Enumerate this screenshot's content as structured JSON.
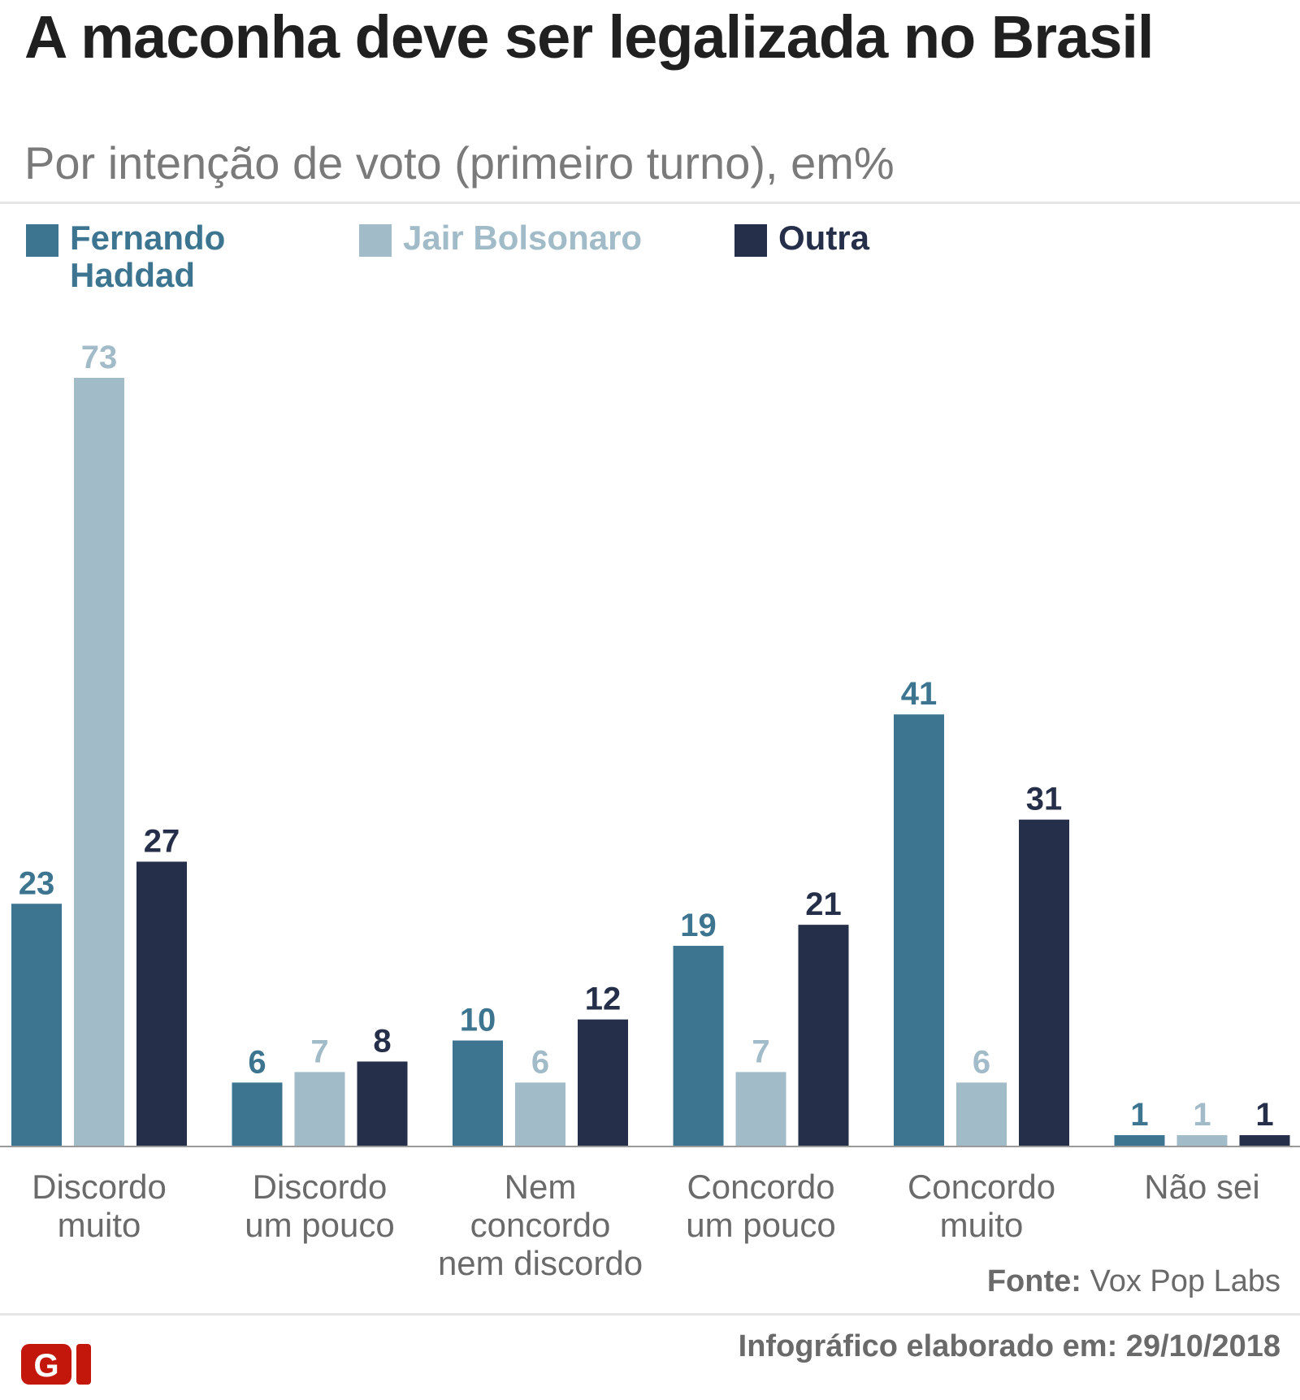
{
  "header": {
    "title": "A maconha deve ser legalizada no Brasil",
    "subtitle": "Por intenção de voto (primeiro turno), em%"
  },
  "legend": [
    {
      "label": "Fernando Haddad",
      "color": "#3d7591"
    },
    {
      "label": "Jair Bolsonaro",
      "color": "#a1bbc8"
    },
    {
      "label": "Outra",
      "color": "#252f4a"
    }
  ],
  "chart_data": {
    "type": "bar",
    "categories": [
      [
        "Discordo",
        "muito"
      ],
      [
        "Discordo",
        "um pouco"
      ],
      [
        "Nem",
        "concordo",
        "nem discordo"
      ],
      [
        "Concordo",
        "um pouco"
      ],
      [
        "Concordo",
        "muito"
      ],
      [
        "Não sei"
      ]
    ],
    "series": [
      {
        "name": "Fernando Haddad",
        "color": "#3d7591",
        "values": [
          23,
          6,
          10,
          19,
          41,
          1
        ]
      },
      {
        "name": "Jair Bolsonaro",
        "color": "#a1bbc8",
        "values": [
          73,
          7,
          6,
          7,
          6,
          1
        ]
      },
      {
        "name": "Outra",
        "color": "#252f4a",
        "values": [
          27,
          8,
          12,
          21,
          31,
          1
        ]
      }
    ],
    "ylim": [
      0,
      73
    ],
    "grid": false,
    "legend_position": "top-left"
  },
  "footer": {
    "source_label": "Fonte:",
    "source_value": " Vox Pop Labs",
    "date_text": "Infográfico elaborado em: 29/10/2018",
    "logo_text": "G1",
    "logo_color": "#c4170c"
  }
}
